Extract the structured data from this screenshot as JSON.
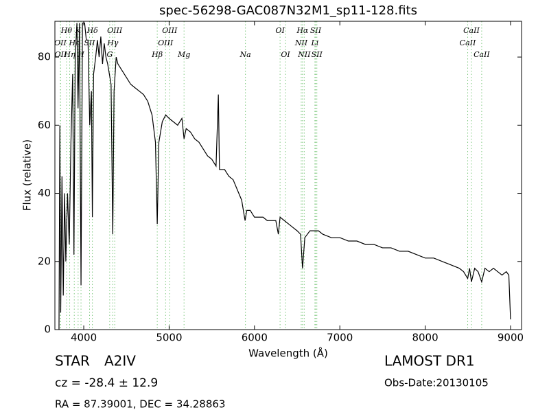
{
  "chart_data": {
    "type": "line",
    "title": "spec-56298-GAC087N32M1_sp11-128.fits",
    "xlabel": "Wavelength (Å)",
    "ylabel": "Flux (relative)",
    "xlim": [
      3662,
      9129
    ],
    "ylim": [
      0,
      90.5
    ],
    "xticks": [
      4000,
      5000,
      6000,
      7000,
      8000,
      9000
    ],
    "yticks": [
      0,
      20,
      40,
      60,
      80
    ],
    "color": "#000000",
    "line_color": "#7fc97f",
    "x": [
      3710,
      3720,
      3730,
      3745,
      3760,
      3775,
      3790,
      3810,
      3830,
      3850,
      3870,
      3885,
      3900,
      3920,
      3933,
      3950,
      3968,
      3985,
      4010,
      4030,
      4050,
      4070,
      4090,
      4101,
      4115,
      4140,
      4160,
      4180,
      4200,
      4220,
      4240,
      4260,
      4280,
      4300,
      4320,
      4340,
      4355,
      4380,
      4400,
      4450,
      4500,
      4550,
      4600,
      4650,
      4700,
      4750,
      4800,
      4840,
      4861,
      4880,
      4920,
      4960,
      5000,
      5050,
      5100,
      5150,
      5175,
      5200,
      5250,
      5300,
      5350,
      5400,
      5450,
      5500,
      5550,
      5577,
      5590,
      5650,
      5700,
      5750,
      5800,
      5850,
      5890,
      5910,
      5950,
      6000,
      6050,
      6100,
      6150,
      6200,
      6250,
      6280,
      6300,
      6350,
      6400,
      6450,
      6500,
      6540,
      6563,
      6590,
      6650,
      6700,
      6750,
      6800,
      6900,
      7000,
      7100,
      7200,
      7300,
      7400,
      7500,
      7600,
      7700,
      7800,
      7900,
      8000,
      8100,
      8200,
      8300,
      8400,
      8450,
      8498,
      8520,
      8542,
      8580,
      8620,
      8662,
      8700,
      8750,
      8800,
      8850,
      8900,
      8950,
      8980,
      9000
    ],
    "values": [
      0,
      60,
      5,
      45,
      10,
      40,
      20,
      40,
      25,
      55,
      75,
      22,
      80,
      90,
      65,
      90,
      13,
      90,
      90,
      85,
      85,
      60,
      70,
      33,
      75,
      80,
      85,
      80,
      86,
      78,
      84,
      80,
      78,
      75,
      72,
      28,
      70,
      80,
      78,
      76,
      74,
      72,
      71,
      70,
      69,
      67,
      63,
      55,
      31,
      55,
      61,
      63,
      62,
      61,
      60,
      62,
      56,
      59,
      58,
      56,
      55,
      53,
      51,
      50,
      48,
      69,
      47,
      47,
      45,
      44,
      41,
      38,
      32,
      35,
      35,
      33,
      33,
      33,
      32,
      32,
      32,
      28,
      33,
      32,
      31,
      30,
      29,
      28,
      18,
      27,
      29,
      29,
      29,
      28,
      27,
      27,
      26,
      26,
      25,
      25,
      24,
      24,
      23,
      23,
      22,
      21,
      21,
      20,
      19,
      18,
      17,
      15,
      18,
      14,
      18,
      17,
      14,
      18,
      17,
      18,
      17,
      16,
      17,
      16,
      3
    ],
    "spectral_lines": [
      [
        {
          "label": "Hθ",
          "x": 3798
        },
        {
          "label": "K",
          "x": 3934
        },
        {
          "label": "Hδ",
          "x": 4101
        },
        {
          "label": "OIII",
          "x": 4363
        },
        {
          "label": "OIII",
          "x": 5007
        },
        {
          "label": "OI",
          "x": 6300
        },
        {
          "label": "Hα",
          "x": 6563
        },
        {
          "label": "SII",
          "x": 6717
        },
        {
          "label": "CaII",
          "x": 8542
        }
      ],
      [
        {
          "label": "OII",
          "x": 3726
        },
        {
          "label": "Hε",
          "x": 3889
        },
        {
          "label": "SII",
          "x": 4068
        },
        {
          "label": "Hγ",
          "x": 4340
        },
        {
          "label": "OIII",
          "x": 4959
        },
        {
          "label": "NII",
          "x": 6548
        },
        {
          "label": "Li",
          "x": 6708
        },
        {
          "label": "CaII",
          "x": 8498
        }
      ],
      [
        {
          "label": "OII",
          "x": 3729
        },
        {
          "label": "Hη",
          "x": 3835
        },
        {
          "label": "H",
          "x": 3968
        },
        {
          "label": "G",
          "x": 4304
        },
        {
          "label": "Hβ",
          "x": 4861
        },
        {
          "label": "Mg",
          "x": 5175
        },
        {
          "label": "Na",
          "x": 5894
        },
        {
          "label": "OI",
          "x": 6364
        },
        {
          "label": "NII",
          "x": 6583
        },
        {
          "label": "SII",
          "x": 6731
        },
        {
          "label": "CaII",
          "x": 8662
        }
      ]
    ]
  },
  "info": {
    "class": "STAR",
    "subclass": "A2IV",
    "release": "LAMOST DR1",
    "cz": "cz = -28.4 ± 12.9",
    "obs_date": "Obs-Date:20130105",
    "coords": "RA = 87.39001, DEC = 34.28863"
  }
}
